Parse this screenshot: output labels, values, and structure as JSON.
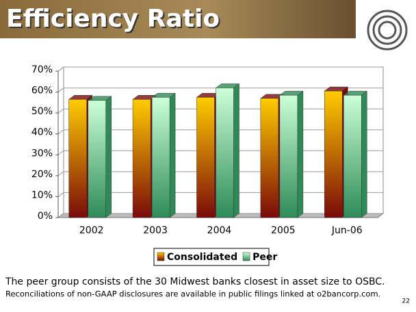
{
  "chart_data": {
    "type": "bar3d",
    "title": "Efficiency Ratio",
    "categories": [
      "2002",
      "2003",
      "2004",
      "2005",
      "Jun-06"
    ],
    "series": [
      {
        "name": "Consolidated",
        "color": "#ffcc00",
        "color_end": "#7a0a0a",
        "values": [
          56.5,
          56.5,
          57.5,
          57,
          60.5
        ]
      },
      {
        "name": "Peer",
        "color": "#ccffd8",
        "color_end": "#2e8b57",
        "values": [
          56,
          57.5,
          62,
          58.5,
          58.5
        ]
      }
    ],
    "ylim": [
      0,
      70
    ],
    "yticks": [
      {
        "value": 0,
        "label": "0%"
      },
      {
        "value": 10,
        "label": "10%"
      },
      {
        "value": 20,
        "label": "20%"
      },
      {
        "value": 30,
        "label": "30%"
      },
      {
        "value": 40,
        "label": "40%"
      },
      {
        "value": 50,
        "label": "50%"
      },
      {
        "value": 60,
        "label": "60%"
      },
      {
        "value": 70,
        "label": "70%"
      }
    ],
    "grid": true,
    "legend": "bottom"
  },
  "footnotes": [
    "The peer group consists of the 30 Midwest banks closest in asset size to OSBC.",
    "Reconciliations of non-GAAP disclosures are available in public filings linked at o2bancorp.com."
  ],
  "page_number": "22"
}
